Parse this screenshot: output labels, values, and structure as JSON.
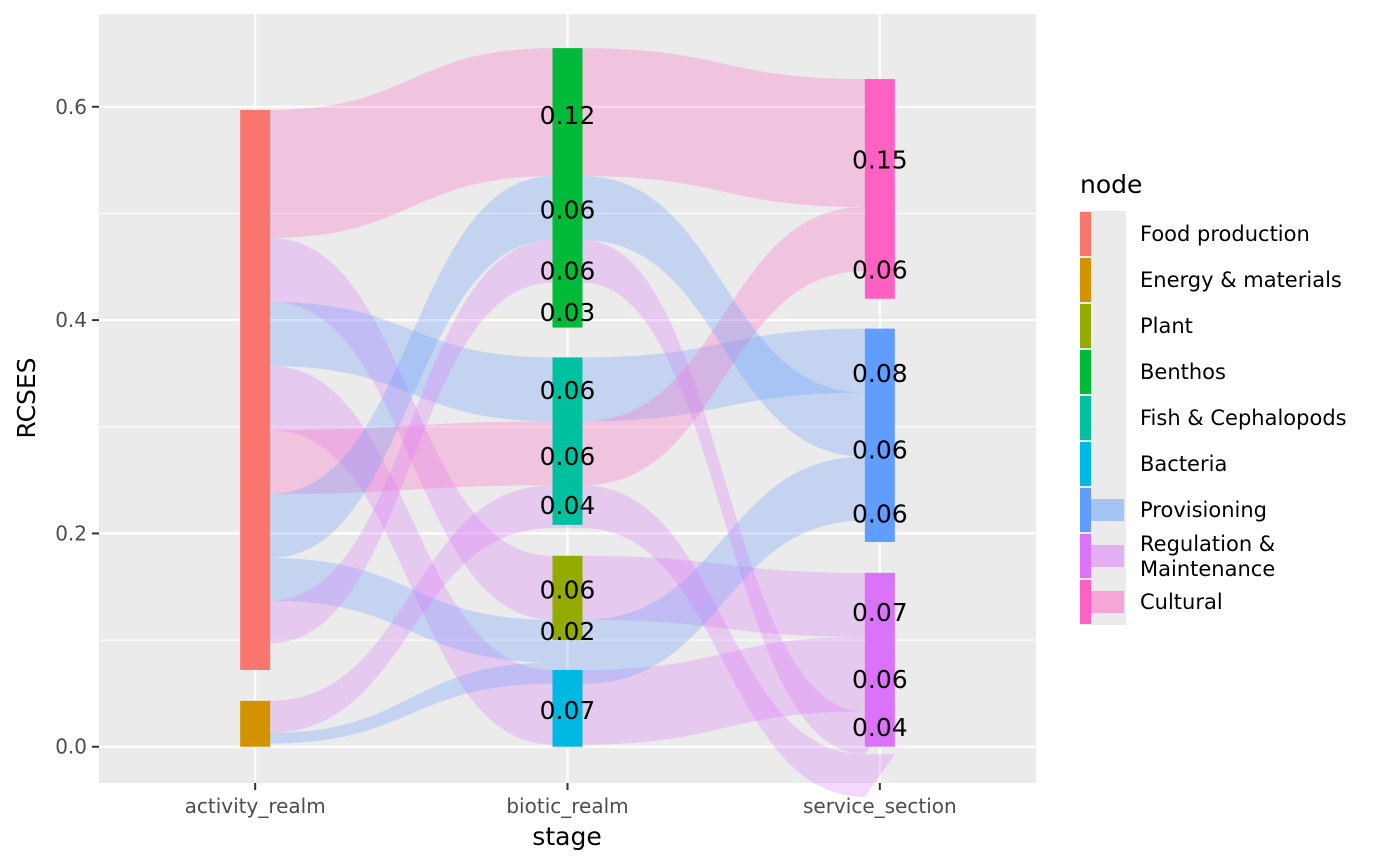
{
  "chart_data": {
    "type": "sankey",
    "xlabel": "stage",
    "ylabel": "RCSES",
    "stages": [
      "activity_realm",
      "biotic_realm",
      "service_section"
    ],
    "ylim": [
      -0.034,
      0.687
    ],
    "y_ticks": [
      0.0,
      0.2,
      0.4,
      0.6
    ],
    "y_tick_labels": [
      "0.0",
      "0.2",
      "0.4",
      "0.6"
    ],
    "grid": true,
    "legend_title": "node",
    "legend_position": "right",
    "nodes": [
      {
        "name": "Food production",
        "stage": "activity_realm",
        "color": "#F8766D",
        "ymin": 0.072,
        "ymax": 0.597
      },
      {
        "name": "Energy & materials",
        "stage": "activity_realm",
        "color": "#D39200",
        "ymin": 0.0,
        "ymax": 0.043
      },
      {
        "name": "Benthos",
        "stage": "biotic_realm",
        "color": "#00BA38",
        "ymin": 0.393,
        "ymax": 0.655
      },
      {
        "name": "Fish & Cephalopods",
        "stage": "biotic_realm",
        "color": "#00C19F",
        "ymin": 0.208,
        "ymax": 0.365
      },
      {
        "name": "Plant",
        "stage": "biotic_realm",
        "color": "#93AA00",
        "ymin": 0.1,
        "ymax": 0.179
      },
      {
        "name": "Bacteria",
        "stage": "biotic_realm",
        "color": "#00B9E3",
        "ymin": 0.0,
        "ymax": 0.072
      },
      {
        "name": "Cultural",
        "stage": "service_section",
        "color": "#FF61C3",
        "ymin": 0.42,
        "ymax": 0.626
      },
      {
        "name": "Provisioning",
        "stage": "service_section",
        "color": "#619CFF",
        "ymin": 0.192,
        "ymax": 0.392
      },
      {
        "name": "Regulation & Maintenance",
        "stage": "service_section",
        "color": "#DB72FB",
        "ymin": 0.0,
        "ymax": 0.163
      }
    ],
    "flows": [
      {
        "from": "Food production",
        "to": "Benthos",
        "service": "Cultural",
        "values": [
          0.12,
          0.12,
          0.12
        ]
      },
      {
        "from": "Food production",
        "to": "Plant",
        "service": "Regulation & Maintenance",
        "values": [
          0.06,
          0.06,
          0.06
        ]
      },
      {
        "from": "Food production",
        "to": "Fish & Cephalopods",
        "service": "Provisioning",
        "values": [
          0.06,
          0.06,
          0.06
        ]
      },
      {
        "from": "Food production",
        "to": "Bacteria",
        "service": "Regulation & Maintenance",
        "values": [
          0.06,
          0.07,
          0.07
        ]
      },
      {
        "from": "Food production",
        "to": "Fish & Cephalopods",
        "service": "Cultural",
        "values": [
          0.06,
          0.06,
          0.06
        ]
      },
      {
        "from": "Food production",
        "to": "Benthos",
        "service": "Provisioning",
        "values": [
          0.06,
          0.06,
          0.06
        ]
      },
      {
        "from": "Food production",
        "to": "Plant",
        "service": "Provisioning",
        "values": [
          0.04,
          0.04,
          0.04
        ]
      },
      {
        "from": "Food production",
        "to": "Benthos",
        "service": "Regulation & Maintenance",
        "values": [
          0.04,
          0.04,
          0.04
        ]
      },
      {
        "from": "Energy & materials",
        "to": "Fish & Cephalopods",
        "service": "Regulation & Maintenance",
        "values": [
          0.03,
          0.04,
          0.04
        ]
      },
      {
        "from": "Energy & materials",
        "to": "Plant",
        "service": "Provisioning",
        "values": [
          0.01,
          0.02,
          0.02
        ]
      }
    ],
    "node_labels": [
      {
        "stage": "biotic_realm",
        "y": 0.592,
        "text": "0.12"
      },
      {
        "stage": "biotic_realm",
        "y": 0.503,
        "text": "0.06"
      },
      {
        "stage": "biotic_realm",
        "y": 0.446,
        "text": "0.06"
      },
      {
        "stage": "biotic_realm",
        "y": 0.407,
        "text": "0.03"
      },
      {
        "stage": "biotic_realm",
        "y": 0.334,
        "text": "0.06"
      },
      {
        "stage": "biotic_realm",
        "y": 0.272,
        "text": "0.06"
      },
      {
        "stage": "biotic_realm",
        "y": 0.226,
        "text": "0.04"
      },
      {
        "stage": "biotic_realm",
        "y": 0.147,
        "text": "0.06"
      },
      {
        "stage": "biotic_realm",
        "y": 0.108,
        "text": "0.02"
      },
      {
        "stage": "biotic_realm",
        "y": 0.034,
        "text": "0.07"
      },
      {
        "stage": "service_section",
        "y": 0.55,
        "text": "0.15"
      },
      {
        "stage": "service_section",
        "y": 0.447,
        "text": "0.06"
      },
      {
        "stage": "service_section",
        "y": 0.35,
        "text": "0.08"
      },
      {
        "stage": "service_section",
        "y": 0.278,
        "text": "0.06"
      },
      {
        "stage": "service_section",
        "y": 0.218,
        "text": "0.06"
      },
      {
        "stage": "service_section",
        "y": 0.126,
        "text": "0.07"
      },
      {
        "stage": "service_section",
        "y": 0.063,
        "text": "0.06"
      },
      {
        "stage": "service_section",
        "y": 0.018,
        "text": "0.04"
      }
    ],
    "legend": [
      {
        "label": "Food production",
        "color": "#F8766D",
        "type": "node"
      },
      {
        "label": "Energy & materials",
        "color": "#D39200",
        "type": "node"
      },
      {
        "label": "Plant",
        "color": "#93AA00",
        "type": "node"
      },
      {
        "label": "Benthos",
        "color": "#00BA38",
        "type": "node"
      },
      {
        "label": "Fish & Cephalopods",
        "color": "#00C19F",
        "type": "node"
      },
      {
        "label": "Bacteria",
        "color": "#00B9E3",
        "type": "node"
      },
      {
        "label": "Provisioning",
        "color": "#619CFF",
        "type": "flow"
      },
      {
        "label": "Regulation &\nMaintenance",
        "color": "#DB72FB",
        "type": "flow"
      },
      {
        "label": "Cultural",
        "color": "#FF61C3",
        "type": "flow"
      }
    ]
  }
}
